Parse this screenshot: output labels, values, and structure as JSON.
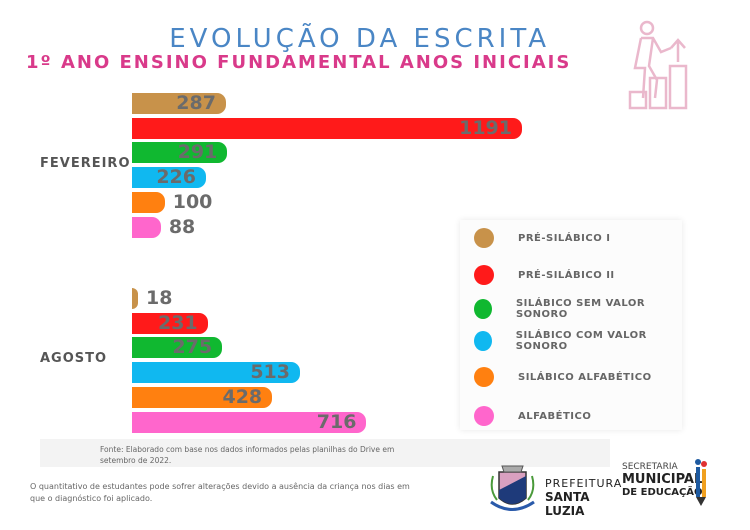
{
  "title": "EVOLUÇÃO  DA ESCRITA",
  "subtitle": "1º ANO ENSINO FUNDAMENTAL ANOS INICIAIS",
  "chart_data": {
    "type": "bar",
    "orientation": "horizontal",
    "categories": [
      "FEVEREIRO",
      "AGOSTO"
    ],
    "series": [
      {
        "name": "PRÉ-SILÁBICO I",
        "color": "#c8924a",
        "values": [
          287,
          18
        ]
      },
      {
        "name": "PRÉ-SILÁBICO II",
        "color": "#ff1a1a",
        "values": [
          1191,
          231
        ]
      },
      {
        "name": "SILÁBICO SEM VALOR SONORO",
        "color": "#10b830",
        "values": [
          291,
          275
        ]
      },
      {
        "name": "SILÁBICO COM VALOR SONORO",
        "color": "#10b8f0",
        "values": [
          226,
          513
        ]
      },
      {
        "name": "SILÁBICO ALFABÉTICO",
        "color": "#ff8010",
        "values": [
          100,
          428
        ]
      },
      {
        "name": "ALFABÉTICO",
        "color": "#ff66cc",
        "values": [
          88,
          716
        ]
      }
    ],
    "legend": "right"
  },
  "source": "Fonte: Elaborado com base nos dados informados pelas planilhas do Drive em  setembro de 2022.",
  "note": "O quantitativo de estudantes pode sofrer alterações devido a ausência da criança nos dias em que o diagnóstico foi aplicado.",
  "logos": {
    "prefeitura_line1": "PREFEITURA",
    "prefeitura_line2": "SANTA LUZIA",
    "secretaria_line1": "SECRETARIA",
    "secretaria_line2": "MUNICIPAL",
    "secretaria_line3": "DE EDUCAÇÃO"
  }
}
